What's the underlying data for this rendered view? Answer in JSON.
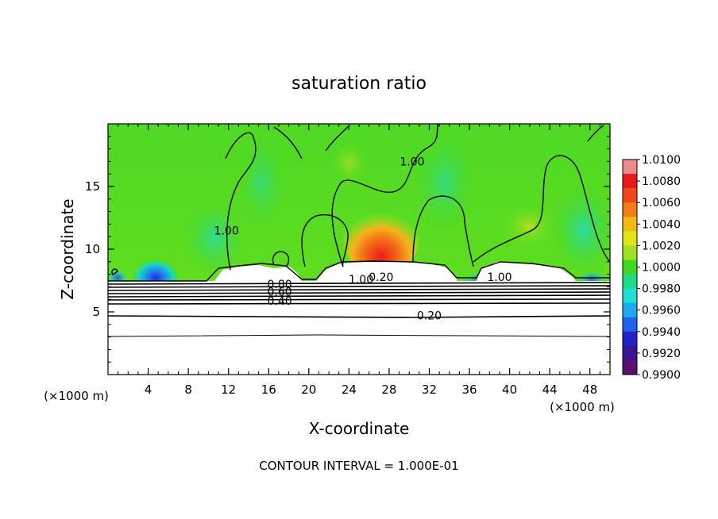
{
  "chart_data": {
    "type": "heatmap",
    "title": "saturation ratio",
    "xlabel": "X-coordinate",
    "ylabel": "Z-coordinate",
    "x_unit": "(×1000 m)",
    "x_unit_right": "(×1000 m)",
    "xlim": [
      0,
      50
    ],
    "ylim": [
      0,
      20
    ],
    "x_ticks": [
      4,
      8,
      12,
      16,
      20,
      24,
      28,
      32,
      36,
      40,
      44,
      48
    ],
    "y_ticks": [
      5,
      10,
      15
    ],
    "colorbar": {
      "min": 0.99,
      "max": 1.01,
      "ticks": [
        "1.0100",
        "1.0080",
        "1.0060",
        "1.0040",
        "1.0020",
        "1.0000",
        "0.9980",
        "0.9960",
        "0.9940",
        "0.9920",
        "0.9900"
      ],
      "colors": [
        "#f08a8a",
        "#e61c1c",
        "#f0471a",
        "#f47d18",
        "#f5b81a",
        "#e0e614",
        "#a2e020",
        "#3ed61e",
        "#1edc86",
        "#1ee0d4",
        "#1ea9ee",
        "#1e62ee",
        "#2222c8",
        "#3a1490",
        "#5a1070"
      ]
    },
    "contour_labels": [
      {
        "text": "1.00",
        "x": 11.8,
        "z": 11.5
      },
      {
        "text": "1.00",
        "x": 30.3,
        "z": 17.0
      },
      {
        "text": "1.00",
        "x": 39.0,
        "z": 7.8
      },
      {
        "text": "1.00",
        "x": 25.2,
        "z": 7.6
      },
      {
        "text": "0.20",
        "x": 27.2,
        "z": 7.8
      },
      {
        "text": "0.80",
        "x": 17.1,
        "z": 7.2
      },
      {
        "text": "0.60",
        "x": 17.1,
        "z": 6.6
      },
      {
        "text": "0.40",
        "x": 17.1,
        "z": 5.9
      },
      {
        "text": "0.20",
        "x": 32.0,
        "z": 4.7
      }
    ],
    "contour_interval": "CONTOUR INTERVAL = 1.000E-01"
  }
}
